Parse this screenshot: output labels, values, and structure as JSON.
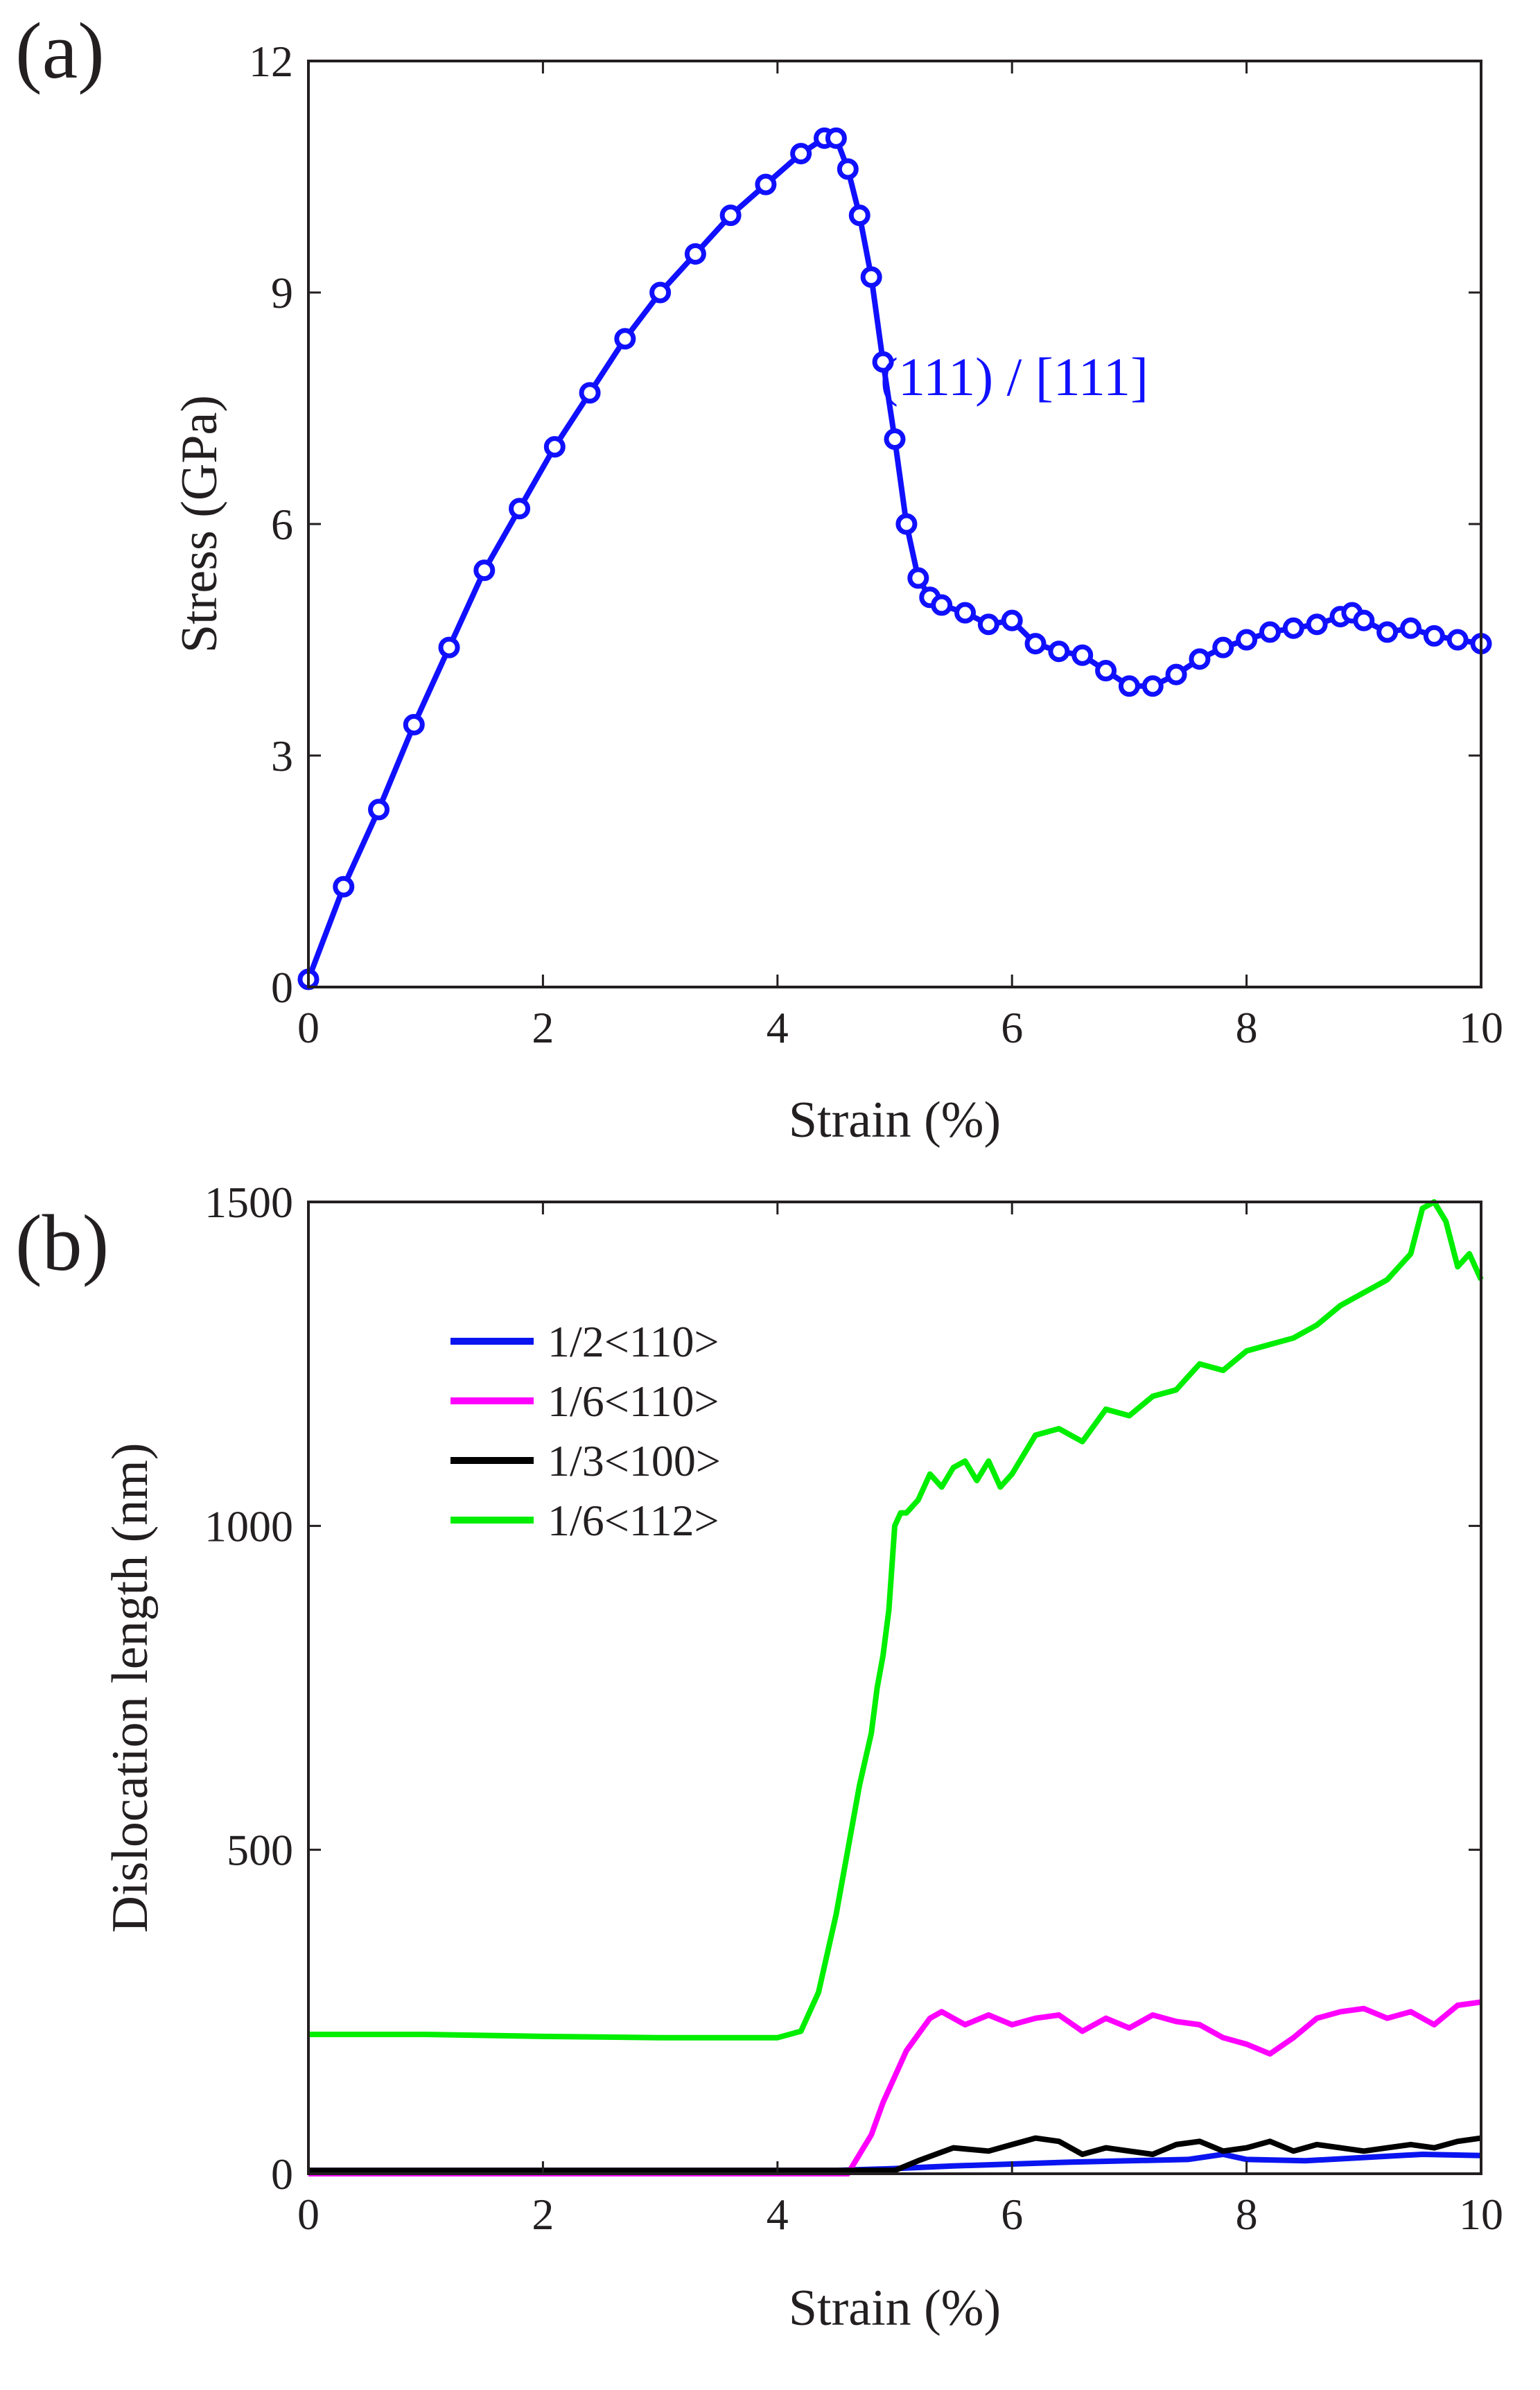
{
  "chart_data": [
    {
      "type": "line",
      "panel_label": "(a)",
      "xlabel": "Strain (%)",
      "ylabel": "Stress (GPa)",
      "xlim": [
        0,
        10
      ],
      "ylim": [
        0,
        12
      ],
      "xticks": [
        "0",
        "2",
        "4",
        "6",
        "8",
        "10"
      ],
      "yticks": [
        "0",
        "3",
        "6",
        "9",
        "12"
      ],
      "annotation": "(111) / [111]",
      "marker": "circle",
      "series": [
        {
          "name": "(111) / [111]",
          "color": "#1010ff",
          "x": [
            0.0,
            0.3,
            0.6,
            0.9,
            1.2,
            1.5,
            1.8,
            2.1,
            2.4,
            2.7,
            3.0,
            3.3,
            3.6,
            3.9,
            4.2,
            4.4,
            4.5,
            4.6,
            4.7,
            4.8,
            4.9,
            5.0,
            5.1,
            5.2,
            5.3,
            5.4,
            5.6,
            5.8,
            6.0,
            6.2,
            6.4,
            6.6,
            6.8,
            7.0,
            7.2,
            7.4,
            7.6,
            7.8,
            8.0,
            8.2,
            8.4,
            8.6,
            8.8,
            8.9,
            9.0,
            9.2,
            9.4,
            9.6,
            9.8,
            10.0
          ],
          "y": [
            0.1,
            1.3,
            2.3,
            3.4,
            4.4,
            5.4,
            6.2,
            7.0,
            7.7,
            8.4,
            9.0,
            9.5,
            10.0,
            10.4,
            10.8,
            11.0,
            11.0,
            10.6,
            10.0,
            9.2,
            8.1,
            7.1,
            6.0,
            5.3,
            5.05,
            4.95,
            4.85,
            4.7,
            4.75,
            4.45,
            4.35,
            4.3,
            4.1,
            3.9,
            3.9,
            4.05,
            4.25,
            4.4,
            4.5,
            4.6,
            4.65,
            4.7,
            4.8,
            4.85,
            4.75,
            4.6,
            4.65,
            4.55,
            4.5,
            4.45
          ]
        }
      ]
    },
    {
      "type": "line",
      "panel_label": "(b)",
      "xlabel": "Strain (%)",
      "ylabel": "Dislocation length (nm)",
      "xlim": [
        0,
        10
      ],
      "ylim": [
        0,
        1500
      ],
      "xticks": [
        "0",
        "2",
        "4",
        "6",
        "8",
        "10"
      ],
      "yticks": [
        "0",
        "500",
        "1000",
        "1500"
      ],
      "legend_position": "upper-left",
      "series": [
        {
          "name": "1/2<110>",
          "color": "#0a14f0",
          "x": [
            0,
            4.5,
            5.0,
            5.5,
            6.0,
            6.5,
            7.0,
            7.5,
            7.8,
            8.0,
            8.5,
            9.0,
            9.5,
            10.0
          ],
          "y": [
            5,
            5,
            8,
            12,
            15,
            18,
            20,
            22,
            30,
            22,
            20,
            25,
            30,
            28
          ]
        },
        {
          "name": "1/6<110>",
          "color": "#ff00ff",
          "x": [
            0,
            4.6,
            4.7,
            4.8,
            4.9,
            5.0,
            5.1,
            5.2,
            5.3,
            5.4,
            5.6,
            5.8,
            6.0,
            6.2,
            6.4,
            6.6,
            6.8,
            7.0,
            7.2,
            7.4,
            7.6,
            7.8,
            8.0,
            8.2,
            8.4,
            8.6,
            8.8,
            9.0,
            9.2,
            9.4,
            9.6,
            9.8,
            10.0
          ],
          "y": [
            0,
            0,
            30,
            60,
            110,
            150,
            190,
            215,
            240,
            250,
            230,
            245,
            230,
            240,
            245,
            220,
            240,
            225,
            245,
            235,
            230,
            210,
            200,
            185,
            210,
            240,
            250,
            255,
            240,
            250,
            230,
            260,
            265
          ]
        },
        {
          "name": "1/3<100>",
          "color": "#000000",
          "x": [
            0,
            5.0,
            5.2,
            5.5,
            5.8,
            6.0,
            6.2,
            6.4,
            6.6,
            6.8,
            7.0,
            7.2,
            7.4,
            7.6,
            7.8,
            8.0,
            8.2,
            8.4,
            8.6,
            8.8,
            9.0,
            9.2,
            9.4,
            9.6,
            9.8,
            10.0
          ],
          "y": [
            5,
            5,
            20,
            40,
            35,
            45,
            55,
            50,
            30,
            40,
            35,
            30,
            45,
            50,
            35,
            40,
            50,
            35,
            45,
            40,
            35,
            40,
            45,
            40,
            50,
            55
          ]
        },
        {
          "name": "1/6<112>",
          "color": "#00ee00",
          "x": [
            0,
            1,
            2,
            3,
            4,
            4.2,
            4.35,
            4.5,
            4.6,
            4.7,
            4.8,
            4.85,
            4.9,
            4.95,
            5.0,
            5.05,
            5.1,
            5.2,
            5.3,
            5.4,
            5.5,
            5.6,
            5.7,
            5.8,
            5.9,
            6.0,
            6.2,
            6.4,
            6.6,
            6.8,
            7.0,
            7.2,
            7.4,
            7.6,
            7.8,
            8.0,
            8.2,
            8.4,
            8.6,
            8.8,
            9.0,
            9.2,
            9.4,
            9.5,
            9.6,
            9.7,
            9.8,
            9.9,
            10.0
          ],
          "y": [
            215,
            215,
            212,
            210,
            210,
            220,
            280,
            400,
            500,
            600,
            680,
            750,
            800,
            870,
            1000,
            1020,
            1020,
            1040,
            1080,
            1060,
            1090,
            1100,
            1070,
            1100,
            1060,
            1080,
            1140,
            1150,
            1130,
            1180,
            1170,
            1200,
            1210,
            1250,
            1240,
            1270,
            1280,
            1290,
            1310,
            1340,
            1360,
            1380,
            1420,
            1490,
            1500,
            1470,
            1400,
            1420,
            1380
          ]
        }
      ]
    }
  ]
}
